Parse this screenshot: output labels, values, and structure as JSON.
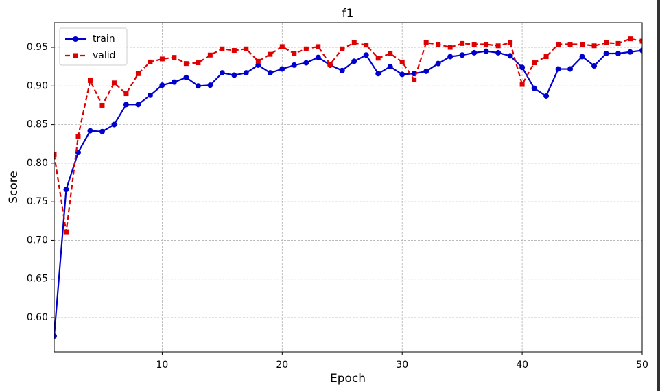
{
  "chart_data": {
    "type": "line",
    "title": "f1",
    "xlabel": "Epoch",
    "ylabel": "Score",
    "x": [
      1,
      2,
      3,
      4,
      5,
      6,
      7,
      8,
      9,
      10,
      11,
      12,
      13,
      14,
      15,
      16,
      17,
      18,
      19,
      20,
      21,
      22,
      23,
      24,
      25,
      26,
      27,
      28,
      29,
      30,
      31,
      32,
      33,
      34,
      35,
      36,
      37,
      38,
      39,
      40,
      41,
      42,
      43,
      44,
      45,
      46,
      47,
      48,
      49,
      50
    ],
    "series": [
      {
        "name": "train",
        "color": "#0000cc",
        "marker": "circle",
        "linestyle": "solid",
        "values": [
          0.576,
          0.766,
          0.814,
          0.842,
          0.841,
          0.85,
          0.876,
          0.876,
          0.888,
          0.901,
          0.905,
          0.911,
          0.9,
          0.901,
          0.917,
          0.914,
          0.917,
          0.927,
          0.917,
          0.922,
          0.927,
          0.93,
          0.937,
          0.927,
          0.92,
          0.932,
          0.94,
          0.916,
          0.925,
          0.915,
          0.916,
          0.919,
          0.929,
          0.938,
          0.94,
          0.943,
          0.945,
          0.943,
          0.939,
          0.924,
          0.897,
          0.887,
          0.922,
          0.922,
          0.938,
          0.926,
          0.942,
          0.942,
          0.944,
          0.946
        ]
      },
      {
        "name": "valid",
        "color": "#dd0000",
        "marker": "square",
        "linestyle": "dashed",
        "values": [
          0.811,
          0.711,
          0.835,
          0.907,
          0.875,
          0.904,
          0.89,
          0.916,
          0.931,
          0.935,
          0.937,
          0.929,
          0.93,
          0.94,
          0.948,
          0.946,
          0.948,
          0.932,
          0.941,
          0.951,
          0.942,
          0.948,
          0.951,
          0.928,
          0.948,
          0.956,
          0.953,
          0.936,
          0.942,
          0.931,
          0.908,
          0.956,
          0.954,
          0.95,
          0.955,
          0.954,
          0.954,
          0.952,
          0.956,
          0.902,
          0.93,
          0.938,
          0.954,
          0.954,
          0.954,
          0.952,
          0.956,
          0.955,
          0.961,
          0.958
        ]
      }
    ],
    "xlim": [
      1,
      50
    ],
    "xticks": [
      10,
      20,
      30,
      40,
      50
    ],
    "ylim": [
      0.5556,
      0.982
    ],
    "yticks": [
      {
        "value": 0.6,
        "label": "0.60"
      },
      0.65,
      {
        "value": 0.7,
        "label": "0.70"
      },
      0.75,
      {
        "value": 0.8,
        "label": "0.80"
      },
      0.85,
      {
        "value": 0.9,
        "label": "0.90"
      },
      0.95
    ],
    "grid": true,
    "legend": "upper left"
  }
}
